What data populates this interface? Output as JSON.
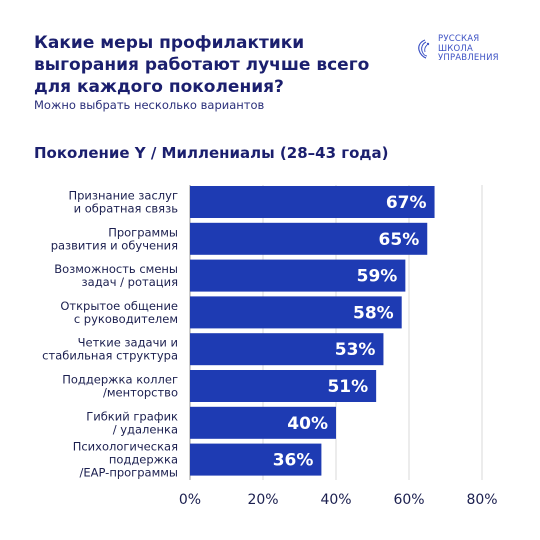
{
  "header": {
    "title": "Какие меры профилактики выгорания работают лучше всего для каждого поколения?",
    "subtitle": "Можно выбрать несколько вариантов"
  },
  "logo": {
    "icon": "rshu-logo-icon",
    "lines": [
      "РУССКАЯ",
      "ШКОЛА",
      "УПРАВЛЕНИЯ"
    ]
  },
  "colors": {
    "bar": "#1e3bb3",
    "title": "#1b1f6e",
    "logo": "#3d52c4",
    "grid": "#d9d9d9"
  },
  "chart_data": {
    "type": "bar",
    "orientation": "horizontal",
    "title": "Поколение Y / Миллениалы (28–43 года)",
    "categories": [
      [
        "Признание заслуг",
        "и обратная связь"
      ],
      [
        "Программы",
        "развития и обучения"
      ],
      [
        "Возможность смены",
        "задач / ротация"
      ],
      [
        "Открытое общение",
        "с руководителем"
      ],
      [
        "Четкие задачи и",
        "стабильная структура"
      ],
      [
        "Поддержка коллег",
        "/менторство"
      ],
      [
        "Гибкий график",
        "/ удаленка"
      ],
      [
        "Психологическая",
        "поддержка",
        "/EAP-программы"
      ]
    ],
    "values": [
      67,
      65,
      59,
      58,
      53,
      51,
      40,
      36
    ],
    "value_labels": [
      "67%",
      "65%",
      "59%",
      "58%",
      "53%",
      "51%",
      "40%",
      "36%"
    ],
    "xlim": [
      0,
      80
    ],
    "xticks": [
      0,
      20,
      40,
      60,
      80
    ],
    "xtick_labels": [
      "0%",
      "20%",
      "40%",
      "60%",
      "80%"
    ],
    "grid": true
  }
}
